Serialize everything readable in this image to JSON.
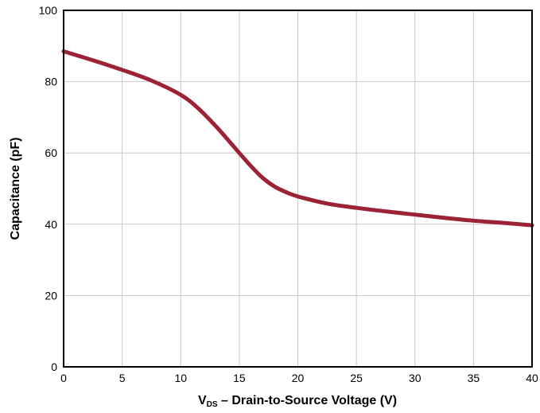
{
  "chart_data": {
    "type": "line",
    "title": "",
    "xlabel_main": "V",
    "xlabel_sub": "DS",
    "xlabel_rest": " – Drain-to-Source Voltage (V)",
    "ylabel": "Capacitance (pF)",
    "xlim": [
      0,
      40
    ],
    "ylim": [
      0,
      100
    ],
    "xticks": [
      0,
      5,
      10,
      15,
      20,
      25,
      30,
      35,
      40
    ],
    "yticks": [
      0,
      20,
      40,
      60,
      80,
      100
    ],
    "grid": true,
    "series": [
      {
        "color": "#9b2335",
        "x": [
          0,
          2.5,
          5,
          7.5,
          10,
          11.5,
          13,
          14,
          15,
          16,
          17,
          18,
          19,
          20,
          22.5,
          25,
          27.5,
          30,
          32.5,
          35,
          37.5,
          40
        ],
        "y": [
          88.5,
          86,
          83.3,
          80.3,
          76.3,
          72.5,
          67.5,
          63.8,
          60,
          56.3,
          53,
          50.6,
          49,
          47.8,
          45.8,
          44.6,
          43.6,
          42.7,
          41.8,
          41,
          40.4,
          39.7
        ]
      }
    ]
  }
}
